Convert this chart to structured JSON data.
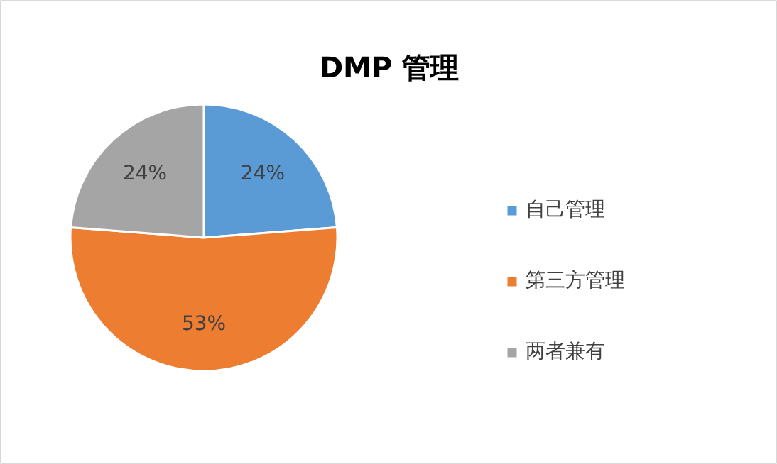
{
  "chart_data": {
    "type": "pie",
    "title": "DMP 管理",
    "categories": [
      "自己管理",
      "第三方管理",
      "两者兼有"
    ],
    "values": [
      24,
      53,
      24
    ],
    "colors": [
      "#5b9bd5",
      "#ed7d31",
      "#a5a5a5"
    ],
    "value_labels": [
      "24%",
      "53%",
      "24%"
    ],
    "legend": "right"
  }
}
